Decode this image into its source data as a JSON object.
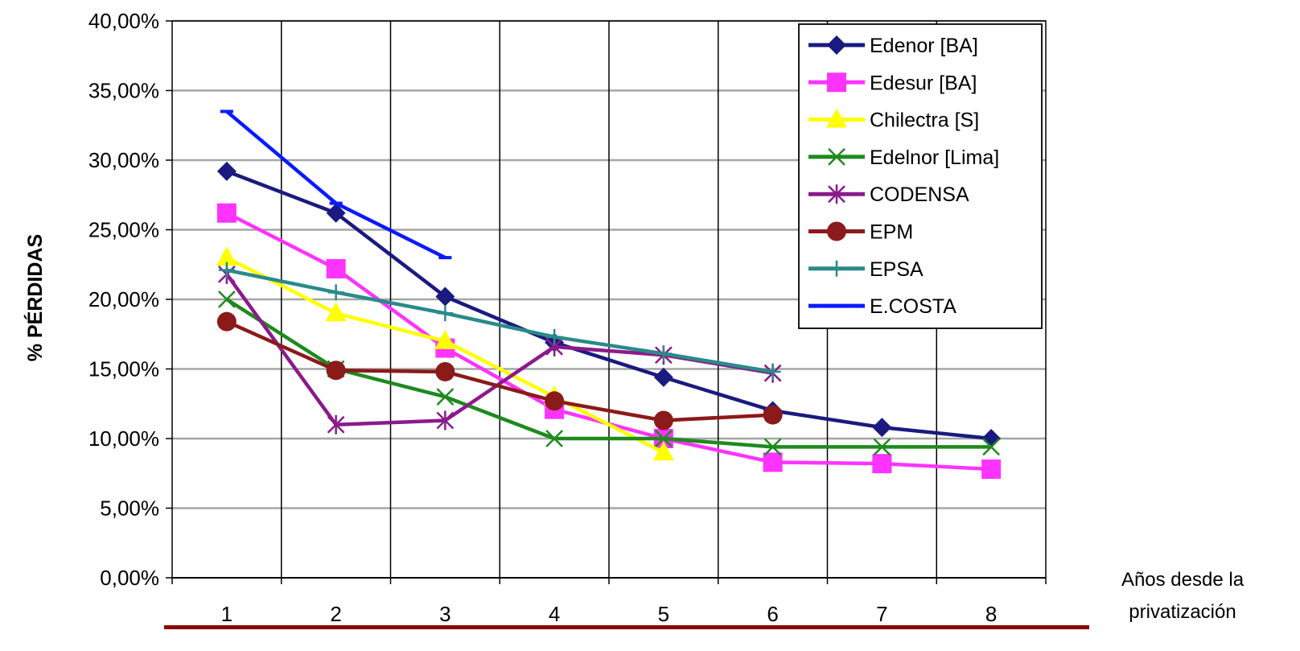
{
  "chart_data": {
    "type": "line",
    "ylabel": "% PÉRDIDAS",
    "xlabel_lines": [
      "Años desde la",
      "privatización"
    ],
    "x": [
      1,
      2,
      3,
      4,
      5,
      6,
      7,
      8
    ],
    "ylim": [
      0,
      0.4
    ],
    "yticks": [
      0,
      0.05,
      0.1,
      0.15,
      0.2,
      0.25,
      0.3,
      0.35,
      0.4
    ],
    "ytick_labels": [
      "0,00%",
      "5,00%",
      "10,00%",
      "15,00%",
      "20,00%",
      "25,00%",
      "30,00%",
      "35,00%",
      "40,00%"
    ],
    "grid": true,
    "legend_position": "top-right",
    "series": [
      {
        "name": "Edenor [BA]",
        "color": "#1a1a80",
        "marker": "diamond",
        "values": [
          0.292,
          0.262,
          0.202,
          0.169,
          0.144,
          0.12,
          0.108,
          0.1
        ]
      },
      {
        "name": "Edesur [BA]",
        "color": "#ff33ff",
        "marker": "square",
        "values": [
          0.262,
          0.222,
          0.165,
          0.121,
          0.1,
          0.083,
          0.082,
          0.078
        ]
      },
      {
        "name": "Chilectra [S]",
        "color": "#ffff00",
        "marker": "triangle",
        "values": [
          0.23,
          0.19,
          0.17,
          0.13,
          0.09,
          null,
          null,
          null
        ]
      },
      {
        "name": "Edelnor [Lima]",
        "color": "#1e8a1e",
        "marker": "x",
        "values": [
          0.2,
          0.15,
          0.13,
          0.1,
          0.1,
          0.094,
          0.094,
          0.094
        ]
      },
      {
        "name": "CODENSA",
        "color": "#8b1a8b",
        "marker": "asterisk",
        "values": [
          0.218,
          0.11,
          0.113,
          0.166,
          0.16,
          0.147,
          null,
          null
        ]
      },
      {
        "name": "EPM",
        "color": "#8b1a1a",
        "marker": "circle",
        "values": [
          0.184,
          0.149,
          0.148,
          0.127,
          0.113,
          0.117,
          null,
          null
        ]
      },
      {
        "name": "EPSA",
        "color": "#2a8a8a",
        "marker": "plus",
        "values": [
          0.221,
          0.205,
          0.19,
          0.173,
          0.161,
          0.148,
          null,
          null
        ]
      },
      {
        "name": "E.COSTA",
        "color": "#0a1aff",
        "marker": "dash",
        "values": [
          0.335,
          0.269,
          0.23,
          null,
          null,
          null,
          null,
          null
        ]
      }
    ]
  }
}
